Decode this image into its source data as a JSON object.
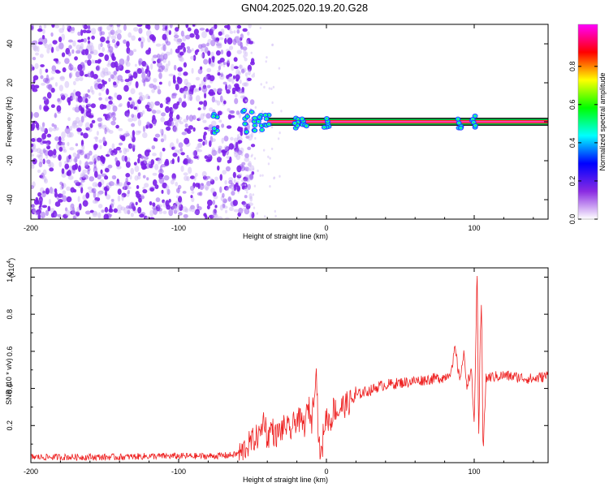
{
  "title": "GN04.2025.020.19.20.G28",
  "chart_data": [
    {
      "type": "heatmap",
      "xlabel": "Height of straight line (km)",
      "ylabel": "Frequency (Hz)",
      "xlim": [
        -200,
        150
      ],
      "ylim": [
        -50,
        50
      ],
      "xticks": [
        -200,
        -100,
        0,
        100
      ],
      "yticks": [
        -40,
        -20,
        0,
        20,
        40
      ],
      "colorbar": {
        "label": "Normalized spectral amplitude",
        "range": [
          0,
          1
        ],
        "ticks": [
          "0.0",
          "0.2",
          "0.4",
          "0.6",
          "0.8"
        ],
        "colors": [
          "#ffffff",
          "#8a2be2",
          "#0000ff",
          "#00ffff",
          "#00ff00",
          "#ffff00",
          "#ff0000",
          "#ff00ff"
        ]
      },
      "features": {
        "noise_region_x": [
          -200,
          -55
        ],
        "carrier_frequency_hz": 0,
        "carrier_x_range": [
          -40,
          150
        ],
        "bursts_x": [
          -75,
          -55,
          -50,
          -45,
          -40,
          -20,
          -15,
          0,
          90,
          100
        ]
      }
    },
    {
      "type": "line",
      "xlabel": "Height of straight line (km)",
      "ylabel": "SNR (10 * v/v)",
      "y_multiplier": "(x10",
      "y_exponent": "4",
      "xlim": [
        -200,
        150
      ],
      "ylim": [
        0,
        1.05
      ],
      "xticks": [
        -200,
        -100,
        0,
        100
      ],
      "yticks": [
        0.2,
        0.4,
        0.6,
        0.8,
        1.0
      ],
      "series_color": "#ee2222",
      "series": [
        {
          "x": [
            -200,
            -180,
            -160,
            -140,
            -120,
            -100,
            -80,
            -65,
            -58,
            -55,
            -50,
            -45,
            -42,
            -40,
            -37,
            -35,
            -30,
            -27,
            -25,
            -20,
            -15,
            -12,
            -10,
            -7,
            -5,
            -3,
            -2,
            0,
            3,
            5,
            8,
            10,
            15,
            20,
            25,
            30,
            35,
            40,
            50,
            60,
            70,
            80,
            85,
            87,
            90,
            93,
            95,
            98,
            100,
            101,
            102,
            103,
            104,
            105,
            106,
            108,
            110,
            120,
            130,
            140,
            150
          ],
          "y": [
            0.03,
            0.03,
            0.03,
            0.03,
            0.035,
            0.035,
            0.035,
            0.04,
            0.05,
            0.08,
            0.12,
            0.15,
            0.25,
            0.12,
            0.2,
            0.14,
            0.18,
            0.2,
            0.16,
            0.24,
            0.2,
            0.3,
            0.22,
            0.52,
            0.08,
            0.04,
            0.18,
            0.25,
            0.22,
            0.3,
            0.27,
            0.3,
            0.32,
            0.36,
            0.38,
            0.39,
            0.41,
            0.42,
            0.43,
            0.44,
            0.45,
            0.46,
            0.5,
            0.62,
            0.45,
            0.58,
            0.42,
            0.5,
            0.2,
            0.62,
            1.05,
            0.07,
            0.65,
            0.87,
            0.06,
            0.45,
            0.46,
            0.47,
            0.46,
            0.45,
            0.47
          ]
        }
      ]
    }
  ]
}
